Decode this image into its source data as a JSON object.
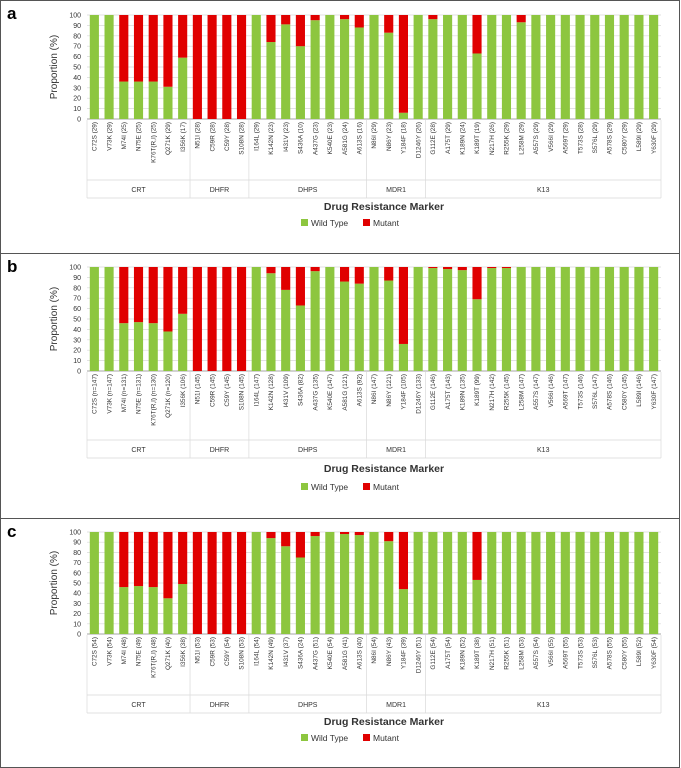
{
  "colors": {
    "wild_type": "#8DC63F",
    "mutant": "#E00000",
    "grid": "#d9d9d9",
    "axis": "#888888"
  },
  "chart_data": [
    {
      "type": "bar",
      "panel": "a",
      "ylabel": "Proportion (%)",
      "xlabel": "Drug Resistance Marker",
      "ylim": [
        0,
        100
      ],
      "yticks": [
        0,
        10,
        20,
        30,
        40,
        50,
        60,
        70,
        80,
        90,
        100
      ],
      "stacked": true,
      "legend": [
        "Wild Type",
        "Mutant"
      ],
      "groups": [
        "CRT",
        "DHFR",
        "DHPS",
        "MDR1",
        "K13"
      ],
      "categories": [
        "C72S (29)",
        "V73K (29)",
        "M74I (25)",
        "N75E (25)",
        "K76T(R,I) (25)",
        "Q271K (29)",
        "I356K (17)",
        "N51I (28)",
        "C59R (28)",
        "C59Y (28)",
        "S108N (28)",
        "I164L (29)",
        "K142N (23)",
        "I431V (23)",
        "S436A (10)",
        "A437G (23)",
        "K540E (23)",
        "A581G (24)",
        "A613S (16)",
        "N86I (29)",
        "N86Y (23)",
        "Y184F (18)",
        "D1246Y (26)",
        "G112E (28)",
        "A175T (29)",
        "K189N (24)",
        "K189T (19)",
        "N217H (26)",
        "R255K (29)",
        "L258M (29)",
        "A557S (29)",
        "V566I (29)",
        "A569T (29)",
        "T573S (28)",
        "S576L (29)",
        "A578S (29)",
        "C580Y (29)",
        "L589I (29)",
        "Y630F (29)"
      ],
      "category_group": [
        "CRT",
        "CRT",
        "CRT",
        "CRT",
        "CRT",
        "CRT",
        "CRT",
        "DHFR",
        "DHFR",
        "DHFR",
        "DHFR",
        "DHPS",
        "DHPS",
        "DHPS",
        "DHPS",
        "DHPS",
        "DHPS",
        "DHPS",
        "DHPS",
        "MDR1",
        "MDR1",
        "MDR1",
        "MDR1",
        "K13",
        "K13",
        "K13",
        "K13",
        "K13",
        "K13",
        "K13",
        "K13",
        "K13",
        "K13",
        "K13",
        "K13",
        "K13",
        "K13",
        "K13",
        "K13"
      ],
      "series": [
        {
          "name": "Wild Type",
          "values": [
            100,
            100,
            36,
            36,
            36,
            31,
            59,
            0,
            0,
            0,
            0,
            100,
            74,
            91,
            70,
            95,
            100,
            96,
            88,
            100,
            83,
            6,
            100,
            96,
            100,
            100,
            63,
            100,
            100,
            93,
            100,
            100,
            100,
            100,
            100,
            100,
            100,
            100,
            100
          ]
        },
        {
          "name": "Mutant",
          "values": [
            0,
            0,
            64,
            64,
            64,
            69,
            41,
            100,
            100,
            100,
            100,
            0,
            26,
            9,
            30,
            5,
            0,
            4,
            12,
            0,
            17,
            94,
            0,
            4,
            0,
            0,
            37,
            0,
            0,
            7,
            0,
            0,
            0,
            0,
            0,
            0,
            0,
            0,
            0
          ]
        }
      ]
    },
    {
      "type": "bar",
      "panel": "b",
      "ylabel": "Proportion (%)",
      "xlabel": "Drug Resistance Marker",
      "ylim": [
        0,
        100
      ],
      "yticks": [
        0,
        10,
        20,
        30,
        40,
        50,
        60,
        70,
        80,
        90,
        100
      ],
      "stacked": true,
      "legend": [
        "Wild Type",
        "Mutant"
      ],
      "groups": [
        "CRT",
        "DHFR",
        "DHPS",
        "MDR1",
        "K13"
      ],
      "categories": [
        "C72S (n=147)",
        "V73K (n=147)",
        "M74I (n=131)",
        "N75E (n=131)",
        "K76T(R,I) (n=130)",
        "Q271K (n=120)",
        "I356K (106)",
        "N51I (145)",
        "C59R (145)",
        "C59Y (145)",
        "S108N (145)",
        "I164L (147)",
        "K142N (128)",
        "I431V (109)",
        "S436A (82)",
        "A437G (135)",
        "K540E (147)",
        "A581G (121)",
        "A613S (92)",
        "N86I (147)",
        "N86Y (121)",
        "Y184F (105)",
        "D1246Y (133)",
        "G112E (146)",
        "A175T (143)",
        "K189N (135)",
        "K189T (99)",
        "N217H (142)",
        "R255K (145)",
        "L258M (147)",
        "A557S (147)",
        "V566I (146)",
        "A569T (147)",
        "T573S (146)",
        "S576L (147)",
        "A578S (146)",
        "C580Y (145)",
        "L589I (146)",
        "Y630F (147)"
      ],
      "category_group": [
        "CRT",
        "CRT",
        "CRT",
        "CRT",
        "CRT",
        "CRT",
        "CRT",
        "DHFR",
        "DHFR",
        "DHFR",
        "DHFR",
        "DHPS",
        "DHPS",
        "DHPS",
        "DHPS",
        "DHPS",
        "DHPS",
        "DHPS",
        "DHPS",
        "MDR1",
        "MDR1",
        "MDR1",
        "MDR1",
        "K13",
        "K13",
        "K13",
        "K13",
        "K13",
        "K13",
        "K13",
        "K13",
        "K13",
        "K13",
        "K13",
        "K13",
        "K13",
        "K13",
        "K13",
        "K13"
      ],
      "series": [
        {
          "name": "Wild Type",
          "values": [
            100,
            100,
            46,
            47,
            46,
            38,
            55,
            0,
            0,
            0,
            0,
            100,
            94,
            78,
            63,
            96,
            100,
            86,
            84,
            100,
            87,
            26,
            100,
            99,
            98,
            97,
            69,
            99,
            99,
            100,
            100,
            100,
            100,
            100,
            100,
            100,
            100,
            100,
            100
          ]
        },
        {
          "name": "Mutant",
          "values": [
            0,
            0,
            54,
            53,
            54,
            62,
            45,
            100,
            100,
            100,
            100,
            0,
            6,
            22,
            37,
            4,
            0,
            14,
            16,
            0,
            13,
            74,
            0,
            1,
            2,
            3,
            31,
            1,
            1,
            0,
            0,
            0,
            0,
            0,
            0,
            0,
            0,
            0,
            0
          ]
        }
      ]
    },
    {
      "type": "bar",
      "panel": "c",
      "ylabel": "Proportion (%)",
      "xlabel": "Drug Resistance Marker",
      "ylim": [
        0,
        100
      ],
      "yticks": [
        0,
        10,
        20,
        30,
        40,
        50,
        60,
        70,
        80,
        90,
        100
      ],
      "stacked": true,
      "legend": [
        "Wild Type",
        "Mutant"
      ],
      "groups": [
        "CRT",
        "DHFR",
        "DHPS",
        "MDR1",
        "K13"
      ],
      "categories": [
        "C72S (54)",
        "V73K (54)",
        "M74I (48)",
        "N75E (49)",
        "K76T(R,I) (48)",
        "Q271K (40)",
        "I356K (38)",
        "N51I (53)",
        "C59R (53)",
        "C59Y (54)",
        "S108N (53)",
        "I164L (54)",
        "K142N (49)",
        "I431V (37)",
        "S436A (24)",
        "A437G (51)",
        "K540E (54)",
        "A581G (41)",
        "A613S (40)",
        "N86I (54)",
        "N86Y (43)",
        "Y184F (39)",
        "D1246Y (51)",
        "G112E (54)",
        "A175T (54)",
        "K189N (52)",
        "K189T (38)",
        "N217H (51)",
        "R255K (51)",
        "L258M (53)",
        "A557S (54)",
        "V566I (55)",
        "A569T (55)",
        "T573S (53)",
        "S576L (53)",
        "A578S (55)",
        "C580Y (55)",
        "L589I (52)",
        "Y630F (54)"
      ],
      "category_group": [
        "CRT",
        "CRT",
        "CRT",
        "CRT",
        "CRT",
        "CRT",
        "CRT",
        "DHFR",
        "DHFR",
        "DHFR",
        "DHFR",
        "DHPS",
        "DHPS",
        "DHPS",
        "DHPS",
        "DHPS",
        "DHPS",
        "DHPS",
        "DHPS",
        "MDR1",
        "MDR1",
        "MDR1",
        "MDR1",
        "K13",
        "K13",
        "K13",
        "K13",
        "K13",
        "K13",
        "K13",
        "K13",
        "K13",
        "K13",
        "K13",
        "K13",
        "K13",
        "K13",
        "K13",
        "K13"
      ],
      "series": [
        {
          "name": "Wild Type",
          "values": [
            100,
            100,
            46,
            47,
            46,
            35,
            49,
            0,
            0,
            0,
            0,
            100,
            94,
            86,
            75,
            96,
            100,
            98,
            97,
            100,
            91,
            44,
            100,
            100,
            100,
            100,
            53,
            100,
            100,
            100,
            100,
            100,
            100,
            100,
            100,
            100,
            100,
            100,
            100
          ]
        },
        {
          "name": "Mutant",
          "values": [
            0,
            0,
            54,
            53,
            54,
            65,
            51,
            100,
            100,
            100,
            100,
            0,
            6,
            14,
            25,
            4,
            0,
            2,
            3,
            0,
            9,
            56,
            0,
            0,
            0,
            0,
            47,
            0,
            0,
            0,
            0,
            0,
            0,
            0,
            0,
            0,
            0,
            0,
            0
          ]
        }
      ]
    }
  ]
}
